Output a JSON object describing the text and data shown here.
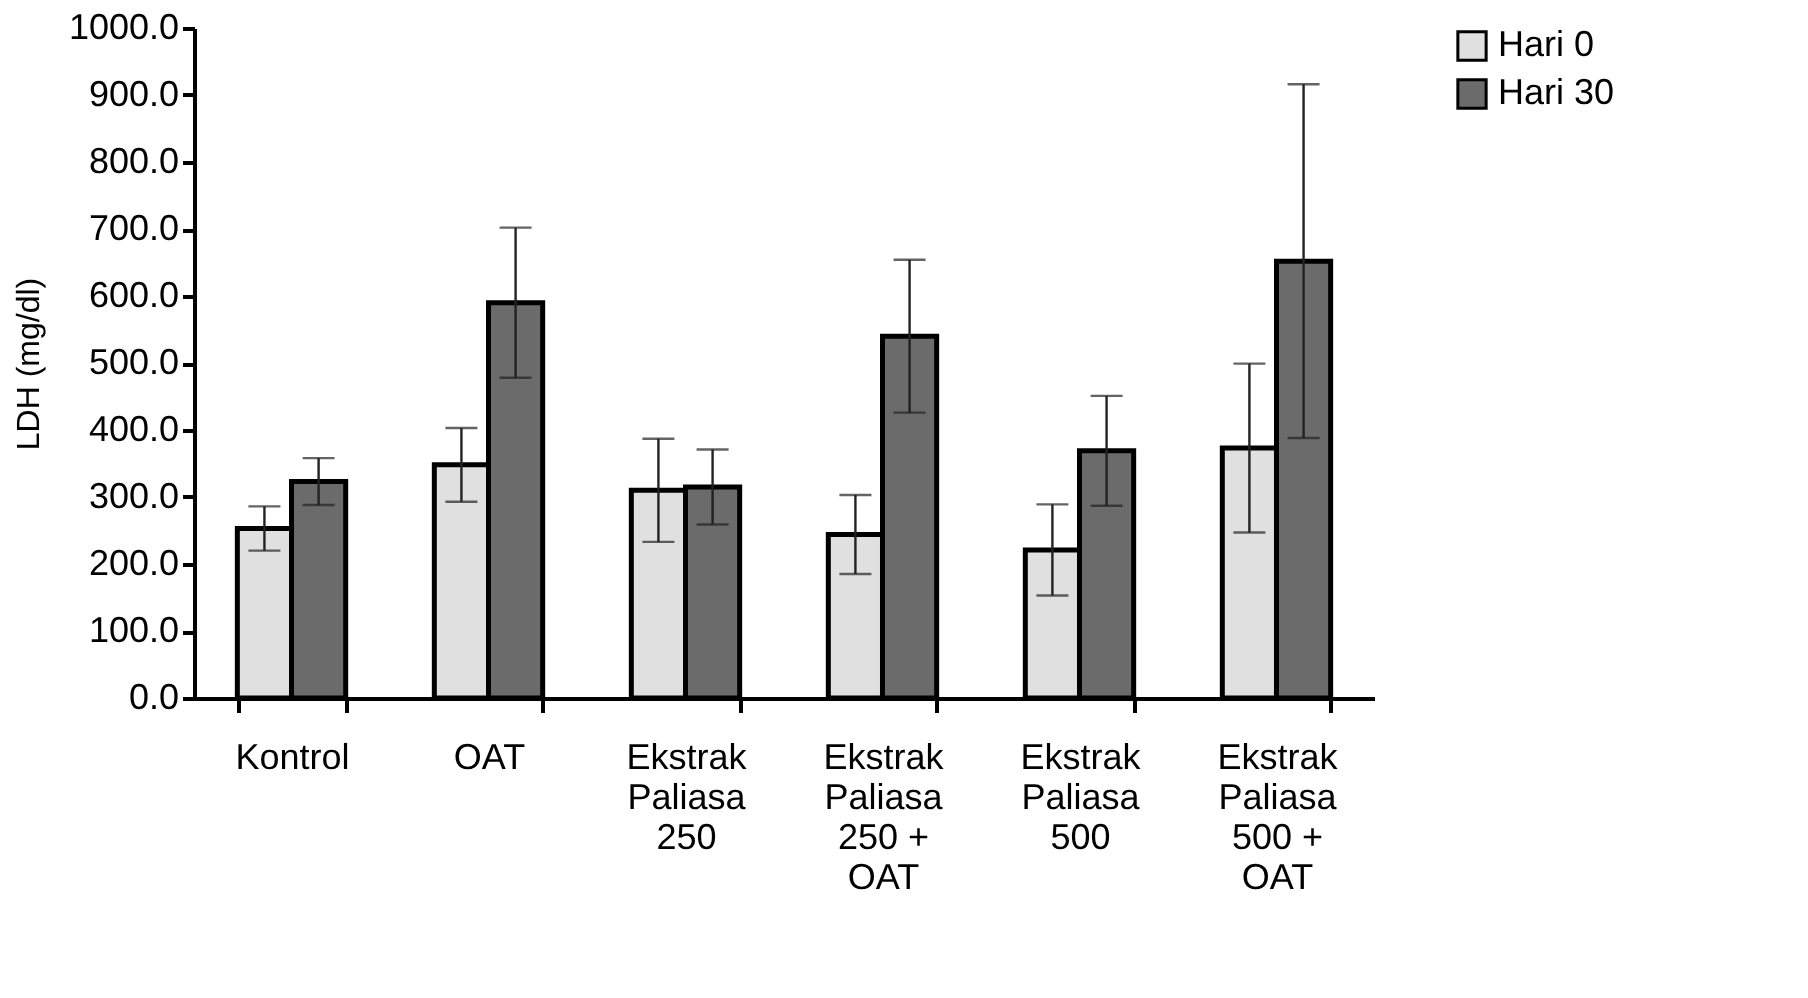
{
  "chart_data": {
    "type": "bar",
    "ylabel": "LDH (mg/dl)",
    "categories": [
      "Kontrol",
      "OAT",
      "Ekstrak Paliasa 250",
      "Ekstrak Paliasa 250 + OAT",
      "Ekstrak Paliasa 500",
      "Ekstrak Paliasa 500 + OAT"
    ],
    "series": [
      {
        "name": "Hari 0",
        "color": "#e0e0e0",
        "values": [
          253,
          348,
          310,
          244,
          221,
          373
        ],
        "errors": [
          33,
          55,
          77,
          59,
          68,
          126
        ]
      },
      {
        "name": "Hari 30",
        "color": "#6b6b6b",
        "values": [
          323,
          590,
          315,
          540,
          369,
          652
        ],
        "errors": [
          35,
          112,
          56,
          114,
          82,
          264
        ]
      }
    ],
    "ylim": [
      0,
      1000
    ],
    "yticks": [
      {
        "value": 0,
        "label": "0.0"
      },
      {
        "value": 100,
        "label": "100.0"
      },
      {
        "value": 200,
        "label": "200.0"
      },
      {
        "value": 300,
        "label": "300.0"
      },
      {
        "value": 400,
        "label": "400.0"
      },
      {
        "value": 500,
        "label": "500.0"
      },
      {
        "value": 600,
        "label": "600.0"
      },
      {
        "value": 700,
        "label": "700.0"
      },
      {
        "value": 800,
        "label": "800.0"
      },
      {
        "value": 900,
        "label": "900.0"
      },
      {
        "value": 1000,
        "label": "1000.0"
      }
    ],
    "grid": false,
    "legend": "right"
  }
}
